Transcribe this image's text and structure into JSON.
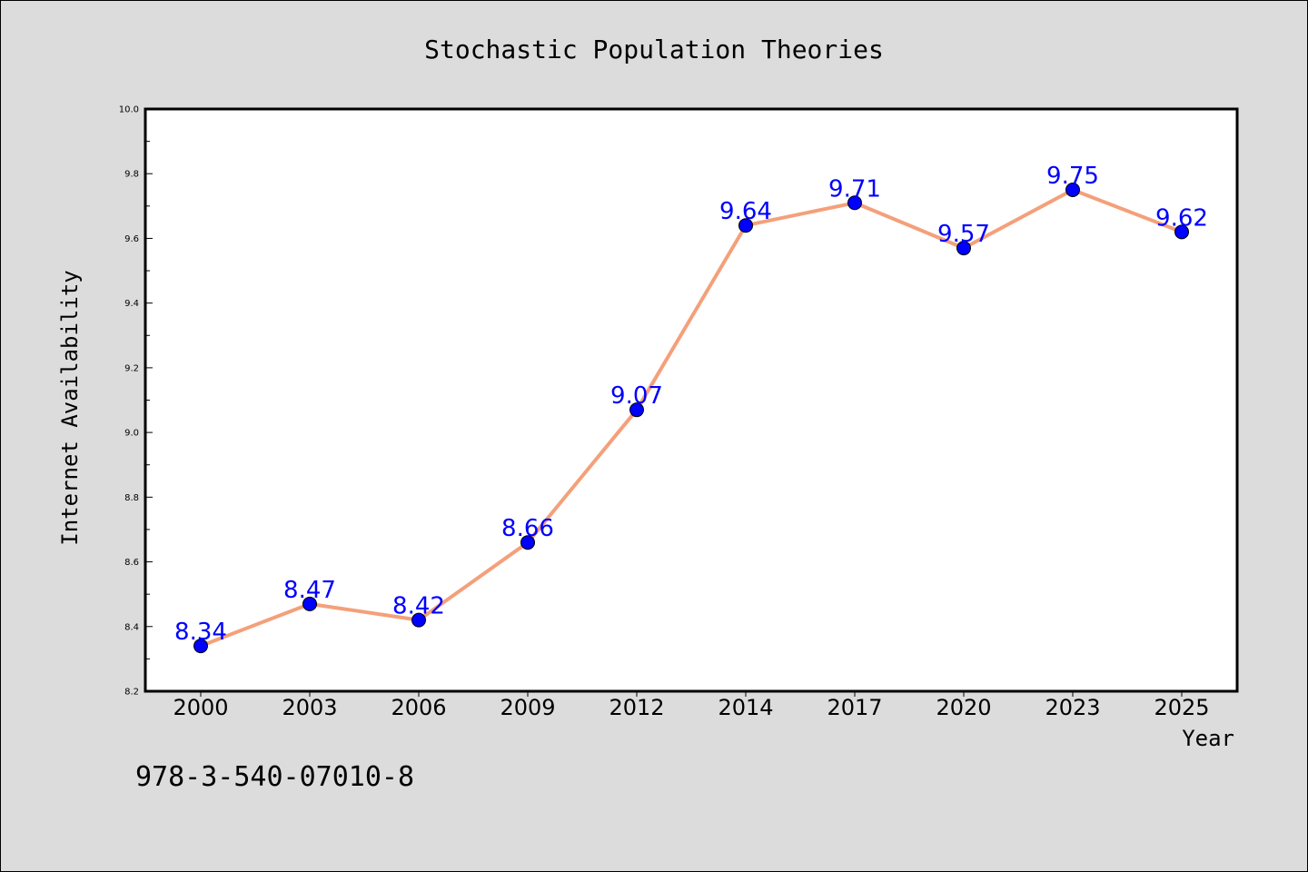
{
  "chart_data": {
    "type": "line",
    "title": "Stochastic Population Theories",
    "xlabel": "Year",
    "ylabel": "Internet Availability",
    "categories": [
      "2000",
      "2003",
      "2006",
      "2009",
      "2012",
      "2014",
      "2017",
      "2020",
      "2023",
      "2025"
    ],
    "series": [
      {
        "values": [
          8.34,
          8.47,
          8.42,
          8.66,
          9.07,
          9.64,
          9.71,
          9.57,
          9.75,
          9.62
        ],
        "line_color": "#f4a07a",
        "marker_color": "#0000ff"
      }
    ],
    "data_labels": [
      "8.34",
      "8.47",
      "8.42",
      "8.66",
      "9.07",
      "9.64",
      "9.71",
      "9.57",
      "9.75",
      "9.62"
    ],
    "ylim": [
      8.2,
      10.0
    ],
    "yticks": [
      "8.2",
      "8.4",
      "8.6",
      "8.8",
      "9.0",
      "9.2",
      "9.4",
      "9.6",
      "9.8",
      "10.0"
    ],
    "grid": false,
    "legend": "none"
  },
  "footer_code": "978-3-540-07010-8",
  "colors": {
    "background": "#dcdcdc",
    "plot_background": "#ffffff",
    "label": "#0000ff"
  }
}
